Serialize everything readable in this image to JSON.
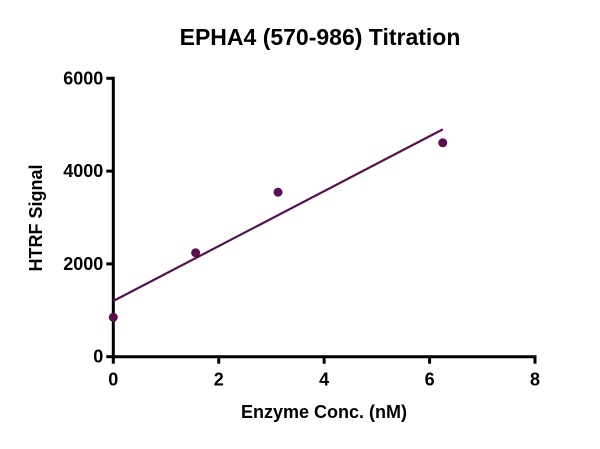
{
  "chart_data": {
    "type": "scatter",
    "title": "EPHA4 (570-986) Titration",
    "xlabel": "Enzyme Conc. (nM)",
    "ylabel": "HTRF Signal",
    "xlim": [
      0,
      8
    ],
    "ylim": [
      0,
      6000
    ],
    "x_ticks": [
      "0",
      "2",
      "4",
      "6",
      "8"
    ],
    "y_ticks": [
      "0",
      "2000",
      "4000",
      "6000"
    ],
    "grid": false,
    "series": [
      {
        "x": [
          0,
          1.5625,
          3.125,
          6.25
        ],
        "y": [
          850,
          2240,
          3545,
          4610
        ],
        "color": "#5a0f4f",
        "fit_line": {
          "x": [
            0,
            6.25
          ],
          "y": [
            1200,
            4900
          ]
        }
      }
    ]
  }
}
